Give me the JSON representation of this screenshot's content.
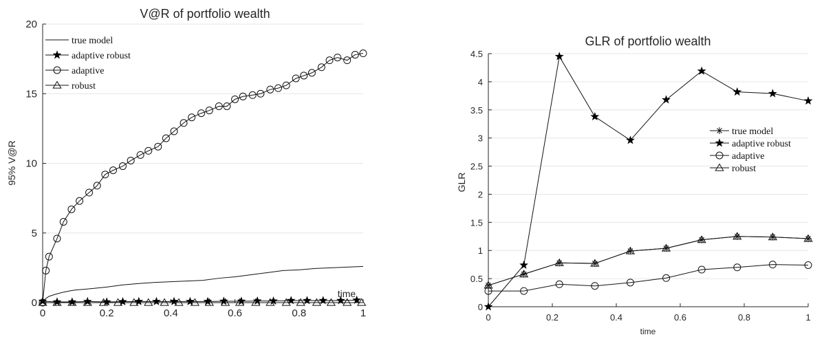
{
  "chart_data": [
    {
      "type": "line",
      "title": "V@R of portfolio wealth",
      "xlabel": "time",
      "ylabel": "95% V@R",
      "xlim": [
        0,
        1
      ],
      "ylim": [
        0,
        20
      ],
      "xticks": [
        0,
        0.2,
        0.4,
        0.6,
        0.8,
        1
      ],
      "yticks": [
        0,
        5,
        10,
        15,
        20
      ],
      "xtick_labels": [
        "0",
        "0.2",
        "0.4",
        "0.6",
        "0.8",
        "1"
      ],
      "ytick_labels": [
        "0",
        "5",
        "10",
        "15",
        "20"
      ],
      "grid": "horizontal",
      "legend_position": "top-left",
      "series": [
        {
          "name": "true model",
          "marker": "none",
          "x": [
            0,
            0.01,
            0.02,
            0.04,
            0.06,
            0.08,
            0.1,
            0.15,
            0.2,
            0.25,
            0.3,
            0.35,
            0.4,
            0.45,
            0.5,
            0.55,
            0.6,
            0.65,
            0.7,
            0.75,
            0.8,
            0.85,
            0.9,
            0.95,
            1
          ],
          "values": [
            0.05,
            0.3,
            0.45,
            0.6,
            0.72,
            0.82,
            0.9,
            1.0,
            1.12,
            1.27,
            1.37,
            1.45,
            1.5,
            1.55,
            1.6,
            1.75,
            1.85,
            2.0,
            2.15,
            2.3,
            2.35,
            2.45,
            2.5,
            2.55,
            2.6
          ]
        },
        {
          "name": "adaptive robust",
          "marker": "star",
          "x": [
            0,
            0.045,
            0.092,
            0.14,
            0.2,
            0.25,
            0.3,
            0.355,
            0.41,
            0.46,
            0.515,
            0.565,
            0.62,
            0.67,
            0.72,
            0.775,
            0.825,
            0.875,
            0.93,
            0.98
          ],
          "values": [
            0.1,
            0.05,
            0.05,
            0.08,
            0.05,
            0.07,
            0.08,
            0.08,
            0.08,
            0.08,
            0.08,
            0.1,
            0.1,
            0.12,
            0.12,
            0.15,
            0.15,
            0.15,
            0.15,
            0.18
          ]
        },
        {
          "name": "adaptive",
          "marker": "circle",
          "x": [
            0,
            0.01,
            0.02,
            0.045,
            0.065,
            0.09,
            0.115,
            0.145,
            0.17,
            0.195,
            0.22,
            0.25,
            0.275,
            0.305,
            0.33,
            0.36,
            0.385,
            0.41,
            0.44,
            0.465,
            0.495,
            0.52,
            0.55,
            0.575,
            0.6,
            0.625,
            0.655,
            0.68,
            0.71,
            0.735,
            0.76,
            0.79,
            0.815,
            0.84,
            0.87,
            0.895,
            0.92,
            0.95,
            0.975,
            1
          ],
          "values": [
            0.0,
            2.3,
            3.3,
            4.6,
            5.8,
            6.7,
            7.3,
            7.9,
            8.4,
            9.2,
            9.5,
            9.8,
            10.2,
            10.6,
            10.9,
            11.2,
            11.8,
            12.3,
            12.9,
            13.3,
            13.6,
            13.8,
            14.1,
            14.1,
            14.6,
            14.8,
            14.9,
            15.0,
            15.3,
            15.4,
            15.6,
            16.1,
            16.3,
            16.5,
            16.9,
            17.4,
            17.6,
            17.4,
            17.8,
            17.9
          ]
        },
        {
          "name": "robust",
          "marker": "triangle",
          "x": [
            0,
            0.045,
            0.092,
            0.14,
            0.19,
            0.235,
            0.285,
            0.33,
            0.38,
            0.425,
            0.475,
            0.52,
            0.57,
            0.615,
            0.665,
            0.71,
            0.76,
            0.805,
            0.855,
            0.9,
            0.95,
            0.995
          ],
          "values": [
            0.0,
            0.0,
            0.0,
            0.0,
            0.0,
            0.0,
            0.0,
            0.0,
            0.0,
            0.0,
            0.0,
            0.0,
            0.0,
            0.0,
            0.0,
            0.0,
            0.0,
            0.0,
            0.0,
            0.0,
            0.0,
            0.0
          ]
        }
      ]
    },
    {
      "type": "line",
      "title": "GLR of portfolio wealth",
      "xlabel": "time",
      "ylabel": "GLR",
      "xlim": [
        0,
        1
      ],
      "ylim": [
        0,
        4.5
      ],
      "xticks": [
        0,
        0.2,
        0.4,
        0.6,
        0.8,
        1
      ],
      "yticks": [
        0,
        0.5,
        1,
        1.5,
        2,
        2.5,
        3,
        3.5,
        4,
        4.5
      ],
      "xtick_labels": [
        "0",
        "0.2",
        "0.4",
        "0.6",
        "0.8",
        "1"
      ],
      "ytick_labels": [
        "0",
        "0.5",
        "1",
        "1.5",
        "2",
        "2.5",
        "3",
        "3.5",
        "4",
        "4.5"
      ],
      "grid": "horizontal",
      "legend_position": "middle-right",
      "x": [
        0,
        0.111,
        0.222,
        0.333,
        0.444,
        0.556,
        0.667,
        0.778,
        0.889,
        1
      ],
      "series": [
        {
          "name": "true model",
          "marker": "asterisk",
          "values": [
            0.38,
            0.58,
            0.78,
            0.77,
            0.99,
            1.04,
            1.19,
            1.25,
            1.24,
            1.21
          ]
        },
        {
          "name": "adaptive robust",
          "marker": "star",
          "values": [
            0.0,
            0.74,
            4.45,
            3.38,
            2.96,
            3.68,
            4.19,
            3.82,
            3.79,
            3.66
          ]
        },
        {
          "name": "adaptive",
          "marker": "circle",
          "values": [
            0.28,
            0.28,
            0.4,
            0.37,
            0.43,
            0.51,
            0.66,
            0.7,
            0.75,
            0.74
          ]
        },
        {
          "name": "robust",
          "marker": "triangle",
          "values": [
            0.38,
            0.58,
            0.78,
            0.77,
            0.99,
            1.04,
            1.19,
            1.25,
            1.24,
            1.21
          ]
        }
      ]
    }
  ]
}
